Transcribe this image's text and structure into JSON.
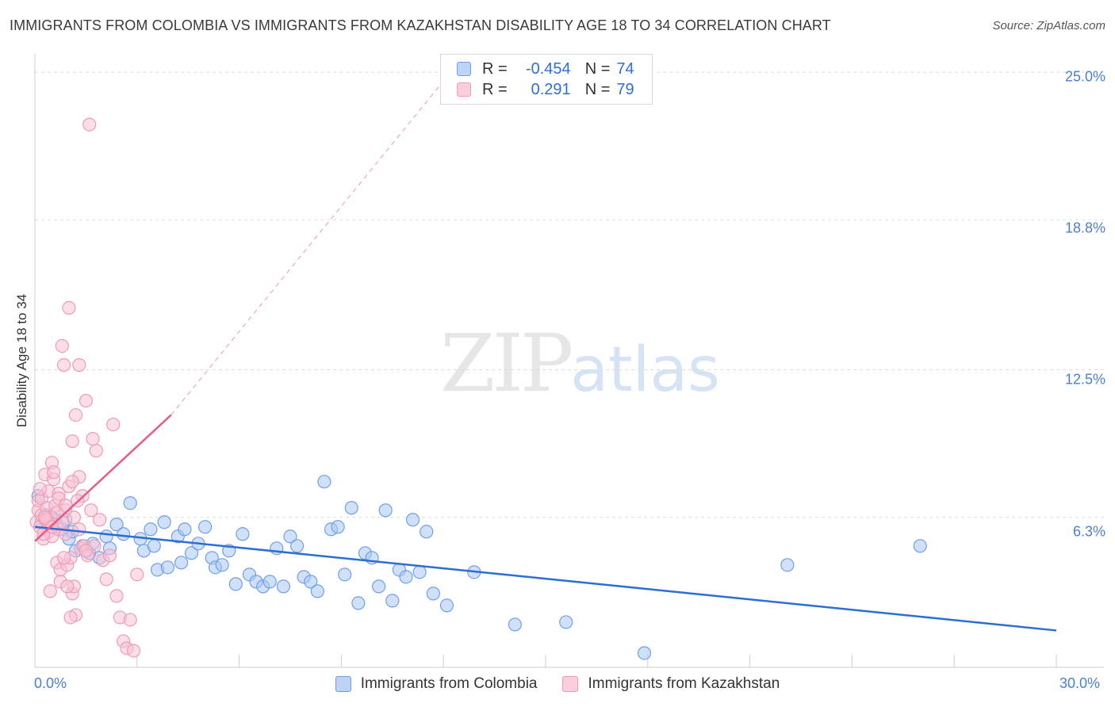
{
  "title": "IMMIGRANTS FROM COLOMBIA VS IMMIGRANTS FROM KAZAKHSTAN DISABILITY AGE 18 TO 34 CORRELATION CHART",
  "source": "Source: ZipAtlas.com",
  "watermark": {
    "zip": "ZIP",
    "atlas": "atlas"
  },
  "legend": {
    "r_label": "R =",
    "n_label": "N =",
    "series1": {
      "r": "-0.454",
      "n": "74"
    },
    "series2": {
      "r": "0.291",
      "n": "79"
    }
  },
  "chart_data": {
    "type": "scatter",
    "title": "IMMIGRANTS FROM COLOMBIA VS IMMIGRANTS FROM KAZAKHSTAN DISABILITY AGE 18 TO 34 CORRELATION CHART",
    "xlabel": "",
    "ylabel": "Disability Age 18 to 34",
    "xlim": [
      0,
      30
    ],
    "ylim": [
      0,
      25.5
    ],
    "x_tick_labels": [
      "0.0%",
      "30.0%"
    ],
    "y_ticks": [
      6.3,
      12.5,
      18.8,
      25.0
    ],
    "y_tick_labels": [
      "6.3%",
      "12.5%",
      "18.8%",
      "25.0%"
    ],
    "grid": true,
    "series": [
      {
        "name": "Immigrants from Colombia",
        "color": "#6f9fe6",
        "fill": "#a9c6f2",
        "line_color": "#2b6fd6",
        "r": -0.454,
        "n": 74,
        "trend": {
          "x": [
            0,
            30
          ],
          "y": [
            5.9,
            1.55
          ]
        },
        "x": [
          0.1,
          0.3,
          0.4,
          0.5,
          0.6,
          0.8,
          1.0,
          1.1,
          1.2,
          1.4,
          1.6,
          1.7,
          1.9,
          2.1,
          2.2,
          2.4,
          2.6,
          2.8,
          3.1,
          3.2,
          3.4,
          3.5,
          3.6,
          3.8,
          3.9,
          4.2,
          4.3,
          4.4,
          4.6,
          4.8,
          5.0,
          5.2,
          5.3,
          5.5,
          5.7,
          5.9,
          6.1,
          6.3,
          6.5,
          6.7,
          6.9,
          7.1,
          7.3,
          7.5,
          7.7,
          7.9,
          8.1,
          8.3,
          8.5,
          8.7,
          8.9,
          9.1,
          9.3,
          9.5,
          9.7,
          9.9,
          10.1,
          10.3,
          10.5,
          10.7,
          10.9,
          11.1,
          11.3,
          11.5,
          11.7,
          12.1,
          12.9,
          14.1,
          15.6,
          17.9,
          22.1,
          26.0,
          0.2,
          0.9
        ],
        "y": [
          7.2,
          6.4,
          6.0,
          6.3,
          6.2,
          5.8,
          5.4,
          5.7,
          4.9,
          5.1,
          4.8,
          5.2,
          4.6,
          5.5,
          5.0,
          6.0,
          5.6,
          6.9,
          5.4,
          4.9,
          5.8,
          5.1,
          4.1,
          6.1,
          4.2,
          5.5,
          4.4,
          5.8,
          4.8,
          5.2,
          5.9,
          4.6,
          4.2,
          4.3,
          4.9,
          3.5,
          5.6,
          3.9,
          3.6,
          3.4,
          3.6,
          5.0,
          3.4,
          5.5,
          5.1,
          3.8,
          3.6,
          3.2,
          7.8,
          5.8,
          5.9,
          3.9,
          6.7,
          2.7,
          4.8,
          4.6,
          3.4,
          6.6,
          2.8,
          4.1,
          3.8,
          6.2,
          4.0,
          5.7,
          3.1,
          2.6,
          4.0,
          1.8,
          1.9,
          0.6,
          4.3,
          5.1,
          6.1,
          6.2
        ]
      },
      {
        "name": "Immigrants from Kazakhstan",
        "color": "#ee9bb5",
        "fill": "#f7c3d3",
        "line_color": "#e55b8a",
        "r": 0.291,
        "n": 79,
        "trend": {
          "x": [
            0,
            4
          ],
          "y": [
            5.3,
            10.6
          ]
        },
        "trend_extension": {
          "x": [
            4,
            12.5
          ],
          "y": [
            10.6,
            25.5
          ]
        },
        "x": [
          0.05,
          0.1,
          0.1,
          0.15,
          0.2,
          0.2,
          0.25,
          0.3,
          0.3,
          0.35,
          0.4,
          0.4,
          0.45,
          0.5,
          0.5,
          0.55,
          0.6,
          0.6,
          0.65,
          0.7,
          0.7,
          0.75,
          0.8,
          0.8,
          0.85,
          0.9,
          0.9,
          0.95,
          1.0,
          1.0,
          1.05,
          1.1,
          1.1,
          1.15,
          1.2,
          1.2,
          1.3,
          1.3,
          1.4,
          1.5,
          1.6,
          1.7,
          1.8,
          1.9,
          2.0,
          2.1,
          2.2,
          2.3,
          2.4,
          2.5,
          2.6,
          2.7,
          2.8,
          2.9,
          3.0,
          0.15,
          0.25,
          0.35,
          0.45,
          0.55,
          0.65,
          0.75,
          0.85,
          0.95,
          1.05,
          1.15,
          1.25,
          1.35,
          1.45,
          1.55,
          1.65,
          1.75,
          0.3,
          0.5,
          0.7,
          0.9,
          1.1,
          1.3,
          1.5
        ],
        "y": [
          6.1,
          6.6,
          7.0,
          5.9,
          6.4,
          7.1,
          5.4,
          6.2,
          8.1,
          6.7,
          7.4,
          5.7,
          6.3,
          8.6,
          5.5,
          7.9,
          6.0,
          6.8,
          4.4,
          5.8,
          7.3,
          4.1,
          6.1,
          13.5,
          12.7,
          5.6,
          6.6,
          4.3,
          15.1,
          7.6,
          4.6,
          9.5,
          3.1,
          3.4,
          10.6,
          2.2,
          12.7,
          8.0,
          7.2,
          11.2,
          22.8,
          9.6,
          9.1,
          6.2,
          4.5,
          3.7,
          4.7,
          10.2,
          3.0,
          2.1,
          1.1,
          0.8,
          2.0,
          0.7,
          3.9,
          7.5,
          5.6,
          6.2,
          3.2,
          8.2,
          6.5,
          3.6,
          4.6,
          3.4,
          2.1,
          6.3,
          7.0,
          5.0,
          5.1,
          4.7,
          6.6,
          5.1,
          6.3,
          5.9,
          7.1,
          6.8,
          7.8,
          5.8,
          4.9
        ]
      }
    ]
  }
}
